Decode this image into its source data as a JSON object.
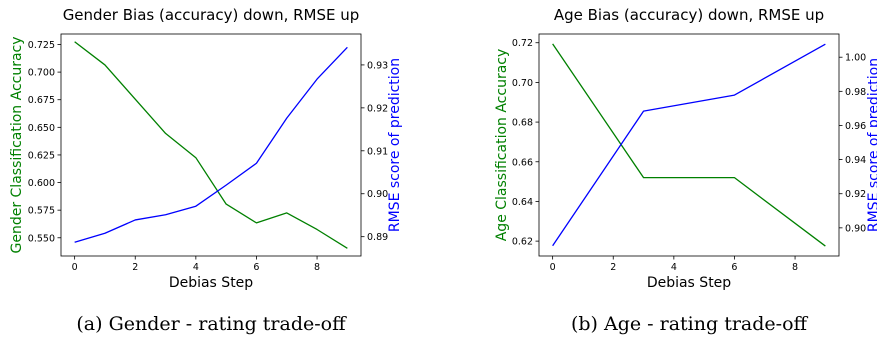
{
  "chart_data": [
    {
      "type": "line",
      "title": "Gender Bias (accuracy) down, RMSE up",
      "caption": "(a) Gender - rating trade-off",
      "xlabel": "Debias Step",
      "ylabel_left": "Gender Classification Accuracy",
      "ylabel_right": "RMSE score of prediction",
      "x_ticks": [
        "0",
        "2",
        "4",
        "6",
        "8"
      ],
      "left_ticks": [
        "0.550",
        "0.575",
        "0.600",
        "0.625",
        "0.650",
        "0.675",
        "0.700",
        "0.725"
      ],
      "right_ticks": [
        "0.89",
        "0.90",
        "0.91",
        "0.92",
        "0.93"
      ],
      "xlim": [
        -0.45,
        9.45
      ],
      "ylim_left": [
        0.5335,
        0.7345
      ],
      "ylim_right": [
        0.8855,
        0.9372
      ],
      "grid": false,
      "series": [
        {
          "axis": "left",
          "color": "#008000",
          "x": [
            0,
            1,
            2,
            3,
            4,
            5,
            6,
            7,
            8,
            9
          ],
          "y": [
            0.7275,
            0.7065,
            0.6755,
            0.6445,
            0.6225,
            0.5805,
            0.5635,
            0.5725,
            0.5575,
            0.5405
          ]
        },
        {
          "axis": "right",
          "color": "#0000ff",
          "x": [
            0,
            1,
            2,
            3,
            4,
            5,
            6,
            7,
            8,
            9
          ],
          "y": [
            0.8887,
            0.8908,
            0.8939,
            0.8951,
            0.8971,
            0.902,
            0.9071,
            0.9176,
            0.9267,
            0.9341
          ]
        }
      ]
    },
    {
      "type": "line",
      "title": "Age Bias (accuracy) down, RMSE up",
      "caption": "(b) Age - rating trade-off",
      "xlabel": "Debias Step",
      "ylabel_left": "Age Classification Accuracy",
      "ylabel_right": "RMSE score of prediction",
      "x_ticks": [
        "0",
        "2",
        "4",
        "6",
        "8"
      ],
      "left_ticks": [
        "0.62",
        "0.64",
        "0.66",
        "0.68",
        "0.70",
        "0.72"
      ],
      "right_ticks": [
        "0.90",
        "0.92",
        "0.94",
        "0.96",
        "0.98",
        "1.00"
      ],
      "xlim": [
        -0.45,
        9.45
      ],
      "ylim_left": [
        0.6125,
        0.7244
      ],
      "ylim_right": [
        0.8835,
        1.0136
      ],
      "grid": false,
      "series": [
        {
          "axis": "left",
          "color": "#008000",
          "x": [
            0,
            3,
            6,
            9
          ],
          "y": [
            0.7194,
            0.652,
            0.652,
            0.6175
          ]
        },
        {
          "axis": "right",
          "color": "#0000ff",
          "x": [
            0,
            3,
            6,
            9
          ],
          "y": [
            0.8895,
            0.9684,
            0.9778,
            1.0076
          ]
        }
      ]
    }
  ]
}
